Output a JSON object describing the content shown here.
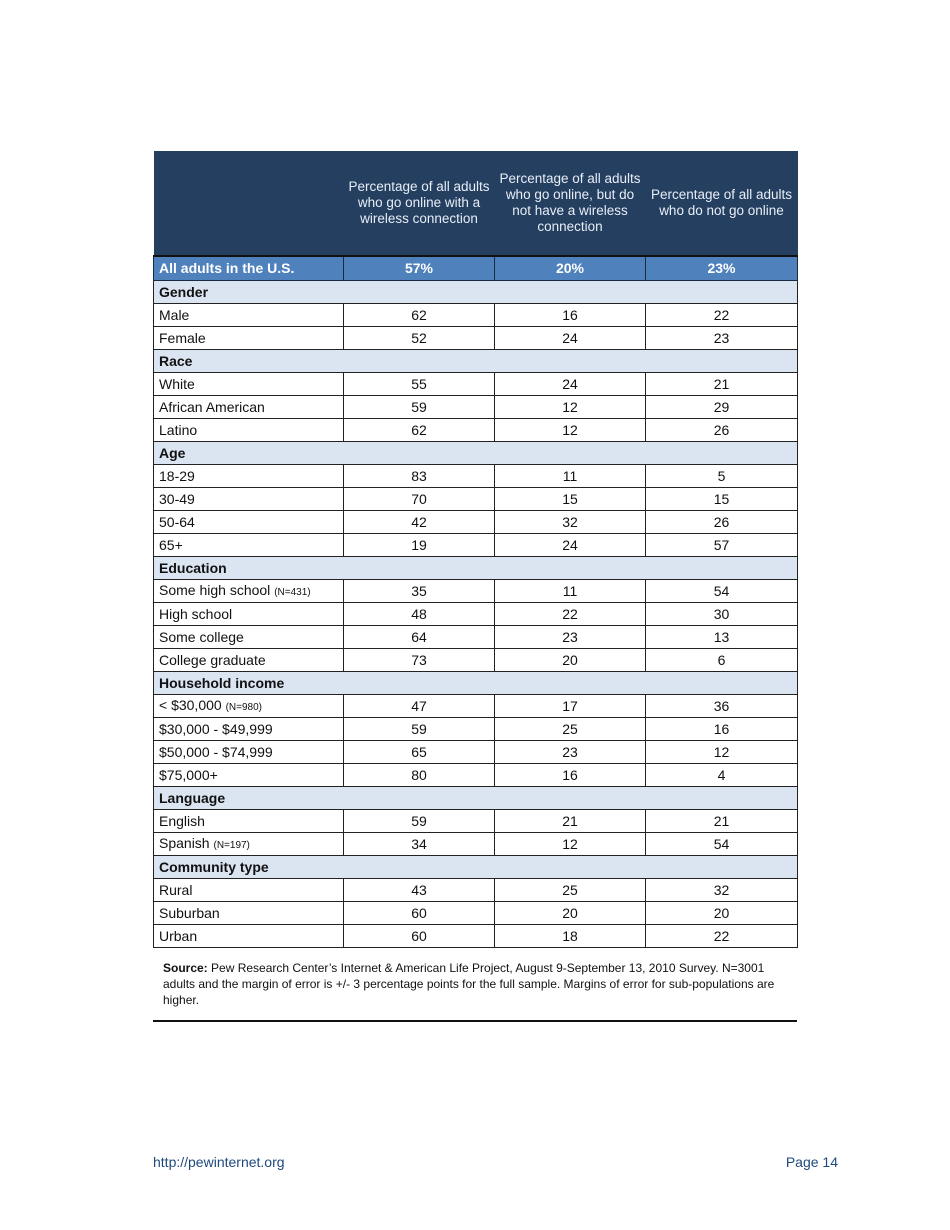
{
  "table": {
    "headers": [
      "",
      "Percentage of all adults who go online with a wireless connection",
      "Percentage of all adults who go online, but do not have a wireless connection",
      "Percentage of all adults who do not go online"
    ],
    "all": {
      "label": "All adults in the U.S.",
      "values": [
        "57%",
        "20%",
        "23%"
      ]
    },
    "sections": [
      {
        "title": "Gender",
        "rows": [
          {
            "label": "Male",
            "values": [
              "62",
              "16",
              "22"
            ]
          },
          {
            "label": "Female",
            "values": [
              "52",
              "24",
              "23"
            ]
          }
        ]
      },
      {
        "title": "Race",
        "rows": [
          {
            "label": "White",
            "values": [
              "55",
              "24",
              "21"
            ]
          },
          {
            "label": "African American",
            "values": [
              "59",
              "12",
              "29"
            ]
          },
          {
            "label": "Latino",
            "values": [
              "62",
              "12",
              "26"
            ]
          }
        ]
      },
      {
        "title": "Age",
        "rows": [
          {
            "label": "18-29",
            "values": [
              "83",
              "11",
              "5"
            ]
          },
          {
            "label": "30-49",
            "values": [
              "70",
              "15",
              "15"
            ]
          },
          {
            "label": "50-64",
            "values": [
              "42",
              "32",
              "26"
            ]
          },
          {
            "label": "65+",
            "values": [
              "19",
              "24",
              "57"
            ]
          }
        ]
      },
      {
        "title": "Education",
        "rows": [
          {
            "label": "Some high school",
            "note": "(N=431)",
            "values": [
              "35",
              "11",
              "54"
            ]
          },
          {
            "label": "High school",
            "values": [
              "48",
              "22",
              "30"
            ]
          },
          {
            "label": "Some college",
            "values": [
              "64",
              "23",
              "13"
            ]
          },
          {
            "label": "College graduate",
            "values": [
              "73",
              "20",
              "6"
            ]
          }
        ]
      },
      {
        "title": "Household income",
        "rows": [
          {
            "label": "< $30,000",
            "note": "(N=980)",
            "values": [
              "47",
              "17",
              "36"
            ]
          },
          {
            "label": "$30,000 - $49,999",
            "values": [
              "59",
              "25",
              "16"
            ]
          },
          {
            "label": "$50,000 - $74,999",
            "values": [
              "65",
              "23",
              "12"
            ]
          },
          {
            "label": "$75,000+",
            "values": [
              "80",
              "16",
              "4"
            ]
          }
        ]
      },
      {
        "title": "Language",
        "rows": [
          {
            "label": "English",
            "values": [
              "59",
              "21",
              "21"
            ]
          },
          {
            "label": "Spanish ",
            "note": "(N=197)",
            "values": [
              "34",
              "12",
              "54"
            ]
          }
        ]
      },
      {
        "title": "Community type",
        "rows": [
          {
            "label": "Rural",
            "values": [
              "43",
              "25",
              "32"
            ]
          },
          {
            "label": "Suburban",
            "values": [
              "60",
              "20",
              "20"
            ]
          },
          {
            "label": "Urban",
            "values": [
              "60",
              "18",
              "22"
            ]
          }
        ]
      }
    ]
  },
  "source": {
    "label": "Source:",
    "text": " Pew Research Center’s Internet & American Life Project, August 9-September 13, 2010 Survey. N=3001 adults and the margin of error is +/- 3 percentage points for the full sample. Margins of error for sub-populations are higher."
  },
  "footer": {
    "url": "http://pewinternet.org",
    "page": "Page 14"
  },
  "colors": {
    "header": "#243f60",
    "accent": "#4f81bd",
    "section": "#dbe5f1"
  }
}
